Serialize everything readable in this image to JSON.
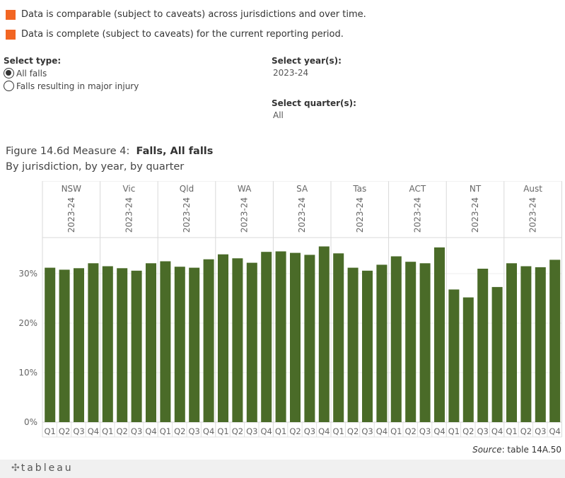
{
  "legend": [
    {
      "label": "Data is comparable (subject to caveats) across jurisdictions and over time.",
      "color": "#f26522"
    },
    {
      "label": "Data is complete (subject to caveats) for the current reporting period.",
      "color": "#f26522"
    }
  ],
  "filters": {
    "type_label": "Select type:",
    "type_options": [
      "All falls",
      "Falls resulting in major injury"
    ],
    "type_selected": "All falls",
    "year_label": "Select year(s):",
    "year_value": "2023-24",
    "quarter_label": "Select quarter(s):",
    "quarter_value": "All"
  },
  "figure": {
    "title_prefix": "Figure 14.6d Measure 4:",
    "title_bold": "Falls, All falls",
    "subtitle": "By jurisdiction, by year, by quarter"
  },
  "source": {
    "label": "Source",
    "value": ": table 14A.50"
  },
  "footer": {
    "logo_text": "tableau"
  },
  "chart_data": {
    "type": "bar",
    "jurisdictions": [
      "NSW",
      "Vic",
      "Qld",
      "WA",
      "SA",
      "Tas",
      "ACT",
      "NT",
      "Aust"
    ],
    "year": "2023-24",
    "quarters": [
      "Q1",
      "Q2",
      "Q3",
      "Q4"
    ],
    "values": {
      "NSW": [
        31.2,
        30.8,
        31.1,
        32.1
      ],
      "Vic": [
        31.5,
        31.1,
        30.6,
        32.1
      ],
      "Qld": [
        32.5,
        31.4,
        31.2,
        32.9
      ],
      "WA": [
        33.9,
        33.1,
        32.2,
        34.4
      ],
      "SA": [
        34.5,
        34.2,
        33.8,
        35.5
      ],
      "Tas": [
        34.1,
        31.2,
        30.6,
        31.8
      ],
      "ACT": [
        33.5,
        32.4,
        32.1,
        35.3
      ],
      "NT": [
        26.8,
        25.2,
        31.0,
        27.3
      ],
      "Aust": [
        32.1,
        31.5,
        31.3,
        32.8
      ]
    },
    "bar_color": "#4a6b28",
    "y_axis": {
      "ticks": [
        "0%",
        "10%",
        "20%",
        "30%"
      ],
      "tick_values": [
        0,
        10,
        20,
        30
      ],
      "ylim": [
        0,
        36
      ]
    },
    "grid": true
  }
}
